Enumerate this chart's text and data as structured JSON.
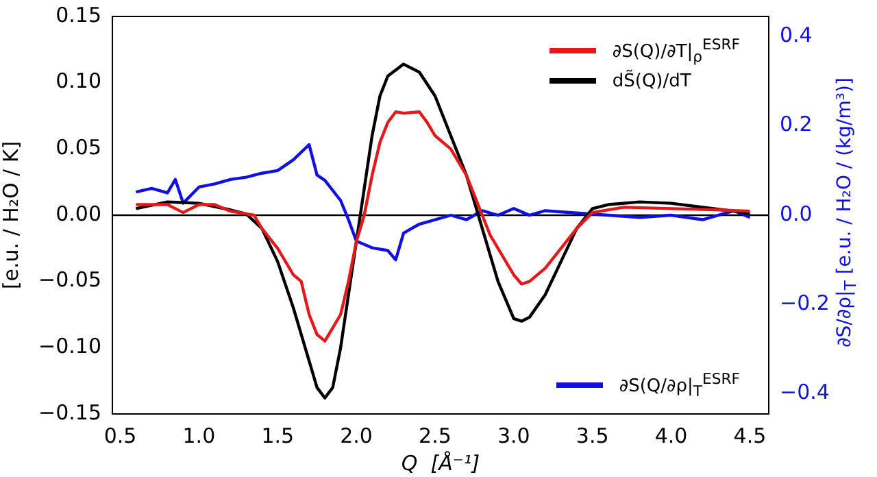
{
  "chart_data": {
    "type": "line",
    "xlabel": "Q  [Å⁻¹]",
    "ylabel": "[e.u. / H₂O / K]",
    "y2label": "∂S/∂ρ|$_{T}$  [e.u. / H₂O / (kg/m³)]",
    "xlim": [
      0.45,
      4.62
    ],
    "xticks": [
      {
        "value": 0.5,
        "label": "0.5"
      },
      {
        "value": 1,
        "label": "1.0"
      },
      {
        "value": 1.5,
        "label": "1.5"
      },
      {
        "value": 2,
        "label": "2.0"
      },
      {
        "value": 2.5,
        "label": "2.5"
      },
      {
        "value": 3,
        "label": "3.0"
      },
      {
        "value": 3.5,
        "label": "3.5"
      },
      {
        "value": 4,
        "label": "4.0"
      },
      {
        "value": 4.5,
        "label": "4.5"
      }
    ],
    "ylim": [
      -0.15,
      0.15
    ],
    "yticks": [
      {
        "value": -0.15,
        "label": "−0.15"
      },
      {
        "value": -0.1,
        "label": "−0.10"
      },
      {
        "value": -0.05,
        "label": "−0.05"
      },
      {
        "value": 0,
        "label": "0.00"
      },
      {
        "value": 0.05,
        "label": "0.05"
      },
      {
        "value": 0.1,
        "label": "0.10"
      },
      {
        "value": 0.15,
        "label": "0.15"
      }
    ],
    "y2lim": [
      -0.445,
      0.445
    ],
    "y2ticks": [
      {
        "value": -0.4,
        "label": "−0.4"
      },
      {
        "value": -0.2,
        "label": "−0.2"
      },
      {
        "value": 0,
        "label": "0.0"
      },
      {
        "value": 0.2,
        "label": "0.2"
      },
      {
        "value": 0.4,
        "label": "0.4"
      }
    ],
    "grid": false,
    "legend": "right",
    "marker": "none",
    "line_style": "solid",
    "ref_lines": [
      {
        "axis": "y",
        "value": 0,
        "color": "#000000"
      }
    ],
    "series": [
      {
        "name": "∂S(Q)/∂T|$_{ρ}$$^{ESRF}$",
        "color": "#e31a1c",
        "x": [
          0.6,
          0.8,
          0.9,
          1.0,
          1.1,
          1.2,
          1.35,
          1.4,
          1.5,
          1.6,
          1.65,
          1.7,
          1.75,
          1.8,
          1.85,
          1.9,
          1.95,
          2.0,
          2.05,
          2.1,
          2.15,
          2.2,
          2.25,
          2.3,
          2.4,
          2.45,
          2.5,
          2.6,
          2.7,
          2.8,
          2.85,
          2.9,
          3.0,
          3.05,
          3.1,
          3.2,
          3.3,
          3.4,
          3.5,
          3.7,
          4.0,
          4.3,
          4.5
        ],
        "values": [
          0.008,
          0.008,
          0.002,
          0.008,
          0.008,
          0.003,
          0.0,
          -0.01,
          -0.025,
          -0.045,
          -0.05,
          -0.075,
          -0.09,
          -0.095,
          -0.085,
          -0.075,
          -0.05,
          -0.02,
          0.0,
          0.03,
          0.055,
          0.07,
          0.078,
          0.077,
          0.078,
          0.07,
          0.06,
          0.05,
          0.03,
          0.0,
          -0.015,
          -0.025,
          -0.045,
          -0.052,
          -0.05,
          -0.04,
          -0.025,
          -0.01,
          0.002,
          0.006,
          0.005,
          0.004,
          0.003
        ]
      },
      {
        "name": "dS̃(Q)/dT",
        "color": "#000000",
        "x": [
          0.6,
          0.8,
          1.0,
          1.2,
          1.3,
          1.4,
          1.5,
          1.6,
          1.7,
          1.75,
          1.8,
          1.85,
          1.9,
          1.95,
          2.0,
          2.05,
          2.1,
          2.15,
          2.2,
          2.3,
          2.4,
          2.5,
          2.6,
          2.7,
          2.8,
          2.9,
          3.0,
          3.05,
          3.1,
          3.2,
          3.3,
          3.4,
          3.5,
          3.6,
          3.8,
          4.0,
          4.2,
          4.4,
          4.5
        ],
        "values": [
          0.005,
          0.01,
          0.009,
          0.004,
          0.001,
          -0.01,
          -0.035,
          -0.07,
          -0.11,
          -0.13,
          -0.138,
          -0.13,
          -0.1,
          -0.06,
          -0.02,
          0.02,
          0.06,
          0.09,
          0.105,
          0.114,
          0.108,
          0.09,
          0.06,
          0.03,
          -0.01,
          -0.05,
          -0.078,
          -0.08,
          -0.077,
          -0.06,
          -0.035,
          -0.01,
          0.005,
          0.008,
          0.01,
          0.009,
          0.006,
          0.003,
          0.001
        ]
      },
      {
        "name": "∂S(Q/∂ρ|$_{T}$$^{ESRF}$",
        "color": "#1010e0",
        "axis": "y2",
        "x": [
          0.6,
          0.7,
          0.8,
          0.85,
          0.9,
          1.0,
          1.1,
          1.2,
          1.3,
          1.4,
          1.5,
          1.6,
          1.7,
          1.75,
          1.8,
          1.9,
          1.95,
          2.0,
          2.1,
          2.2,
          2.25,
          2.3,
          2.4,
          2.5,
          2.6,
          2.7,
          2.8,
          2.9,
          3.0,
          3.1,
          3.2,
          3.4,
          3.6,
          3.8,
          4.0,
          4.2,
          4.4,
          4.5
        ],
        "values": [
          0.052,
          0.06,
          0.05,
          0.08,
          0.027,
          0.063,
          0.07,
          0.08,
          0.085,
          0.094,
          0.1,
          0.124,
          0.158,
          0.09,
          0.078,
          0.033,
          -0.01,
          -0.058,
          -0.073,
          -0.079,
          -0.1,
          -0.04,
          -0.02,
          -0.01,
          0.0,
          -0.01,
          0.01,
          0.0,
          0.015,
          0.0,
          0.01,
          0.005,
          0.0,
          -0.005,
          0.0,
          -0.01,
          0.01,
          -0.005
        ]
      }
    ]
  }
}
